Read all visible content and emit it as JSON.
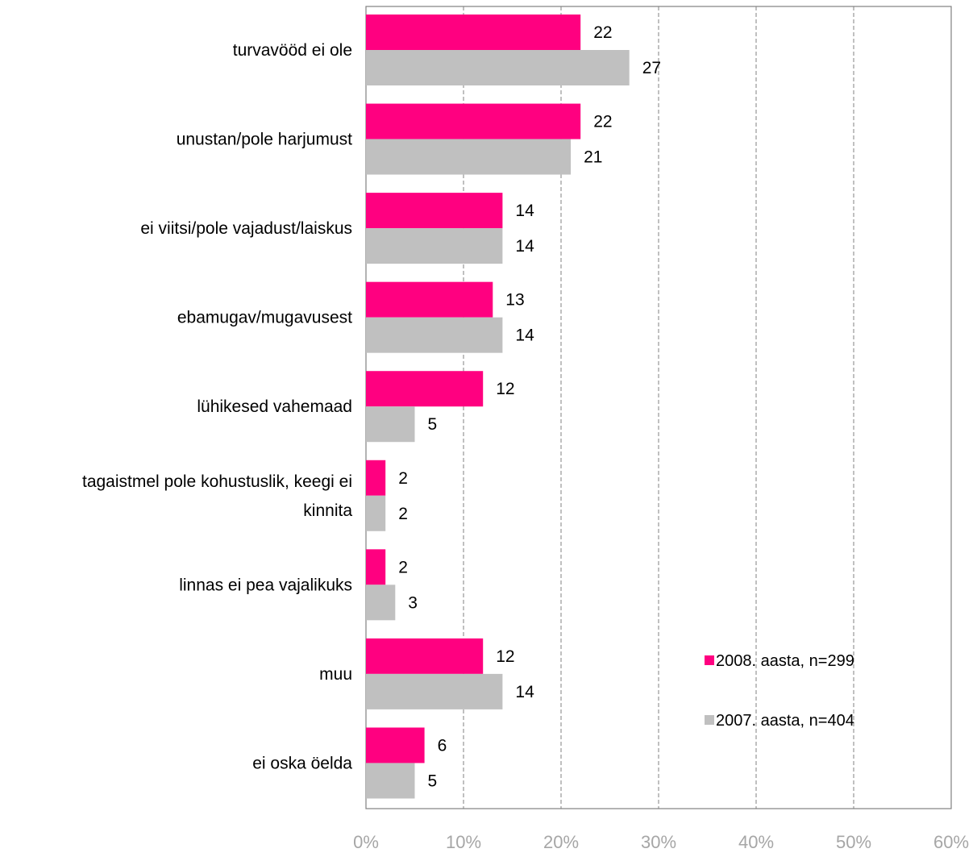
{
  "chart_data": {
    "type": "bar",
    "orientation": "horizontal",
    "categories": [
      [
        "turvavööd ei ole"
      ],
      [
        "unustan/pole harjumust"
      ],
      [
        "ei viitsi/pole vajadust/laiskus"
      ],
      [
        "ebamugav/mugavusest"
      ],
      [
        "lühikesed vahemaad"
      ],
      [
        "tagaistmel pole kohustuslik, keegi ei",
        "kinnita"
      ],
      [
        "linnas ei pea vajalikuks"
      ],
      [
        "muu"
      ],
      [
        "ei oska öelda"
      ]
    ],
    "series": [
      {
        "name": "2008. aasta, n=299",
        "color": "#ff0080",
        "values": [
          22,
          22,
          14,
          13,
          12,
          2,
          2,
          12,
          6
        ]
      },
      {
        "name": "2007. aasta, n=404",
        "color": "#c0c0c0",
        "values": [
          27,
          21,
          14,
          14,
          5,
          2,
          3,
          14,
          5
        ]
      }
    ],
    "xlim": [
      0,
      60
    ],
    "xticks": [
      "0%",
      "10%",
      "20%",
      "30%",
      "40%",
      "50%",
      "60%"
    ],
    "grid": true,
    "legend_position": "bottom-right inside plot"
  }
}
